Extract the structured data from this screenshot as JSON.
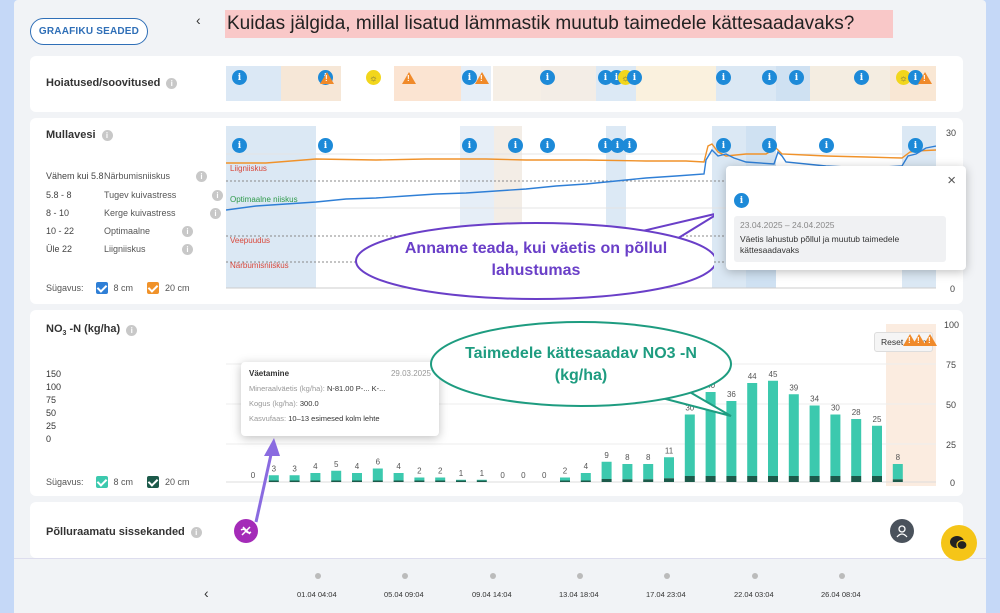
{
  "header": {
    "settings_button": "GRAAFIKU SEADED",
    "collapse_glyph": "‹",
    "title": "Kuidas jälgida, millal lisatud lämmastik muutub taimedele kättesaadavaks?"
  },
  "recommendations": {
    "title": "Hoiatused/soovitused",
    "help": "i",
    "info_glyph": "i",
    "warn_glyph": "!",
    "bulb_glyph": "☼"
  },
  "moisture": {
    "title": "Mullavesi",
    "help": "i",
    "legend": [
      {
        "range": "Vähem kui 5.8",
        "label": "Närbumisniiskus"
      },
      {
        "range": "5.8 - 8",
        "label": "Tugev kuivastress"
      },
      {
        "range": "8 - 10",
        "label": "Kerge kuivastress"
      },
      {
        "range": "10 - 22",
        "label": "Optimaalne"
      },
      {
        "range": "Üle 22",
        "label": "Liigniiskus"
      }
    ],
    "depth_label": "Sügavus:",
    "depth_8": "8 cm",
    "depth_20": "20 cm",
    "zones": {
      "excess": "Liigniiskus",
      "optimal": "Optimaalne niiskus",
      "deficit": "Veepuudus",
      "wilting": "Närbumisniiskus"
    },
    "axis_top": "30",
    "axis_bottom": "0",
    "popup": {
      "close": "×",
      "date": "23.04.2025 – 24.04.2025",
      "text": "Väetis lahustub põllul ja muutub taimedele kättesaadavaks"
    },
    "callout": "Anname teada, kui väetis on põllul lahustumas"
  },
  "no3": {
    "title_main": "NO",
    "title_sub": "3",
    "title_rest": " -N (kg/ha)",
    "help": "i",
    "left_axis": [
      "150",
      "100",
      "75",
      "50",
      "25",
      "0"
    ],
    "right_axis": [
      "100",
      "75",
      "50",
      "25",
      "0"
    ],
    "reset": "Reset zoom",
    "depth_label": "Sügavus:",
    "depth_8": "8 cm",
    "depth_20": "20 cm",
    "tooltip": {
      "name": "Väetamine",
      "date": "29.03.2025",
      "fert_label": "Mineraalväetis (kg/ha):",
      "fert_value": "N-81.00 P-... K-...",
      "amount_label": "Kogus (kg/ha):",
      "amount_value": "300.0",
      "stage_label": "Kasvufaas:",
      "stage_value": "10–13 esimesed kolm lehte"
    },
    "callout": "Taimedele kättesaadav NO3 -N (kg/ha)"
  },
  "chart_data": {
    "type": "bar",
    "title": "NO3 -N (kg/ha)",
    "series": [
      {
        "name": "8 cm",
        "values": [
          0,
          3,
          3,
          4,
          5,
          4,
          6,
          4,
          2,
          2,
          1,
          1,
          0,
          0,
          0,
          2,
          4,
          9,
          8,
          8,
          11,
          30,
          40,
          36,
          44,
          45,
          39,
          34,
          30,
          28,
          25,
          8
        ]
      }
    ],
    "ylim": [
      0,
      100
    ],
    "colors": {
      "top": "#3cc9ae",
      "bottom": "#1c5a4a"
    }
  },
  "journal": {
    "title": "Põlluraamatu sissekanded",
    "help": "i"
  },
  "timeline": {
    "prev": "‹",
    "labels": [
      "01.04 04:04",
      "05.04 09:04",
      "09.04 14:04",
      "13.04 18:04",
      "17.04 23:04",
      "22.04 03:04",
      "26.04 08:04"
    ]
  }
}
